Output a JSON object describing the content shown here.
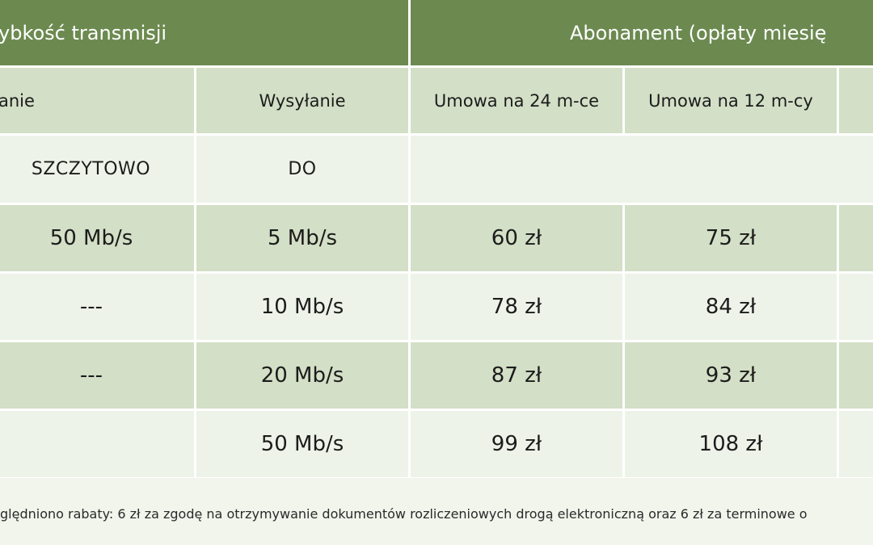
{
  "table": {
    "group_headers": {
      "speed": "ybkość transmisji",
      "subscription": "Abonament (opłaty miesię"
    },
    "sub_headers": {
      "download": "anie",
      "upload": "Wysyłanie",
      "contract_24": "Umowa na 24 m-ce",
      "contract_12": "Umowa na 12 m-cy",
      "extra": ""
    },
    "label_row": {
      "download": "SZCZYTOWO",
      "upload": "DO"
    },
    "rows": [
      {
        "download": "50 Mb/s",
        "upload": "5 Mb/s",
        "contract_24": "60 zł",
        "contract_12": "75 zł"
      },
      {
        "download": "---",
        "upload": "10 Mb/s",
        "contract_24": "78 zł",
        "contract_12": "84 zł"
      },
      {
        "download": "---",
        "upload": "20 Mb/s",
        "contract_24": "87 zł",
        "contract_12": "93 zł"
      },
      {
        "download": "",
        "upload": "50 Mb/s",
        "contract_24": "99 zł",
        "contract_12": "108 zł"
      }
    ]
  },
  "footnote": "ględniono rabaty: 6 zł za zgodę na otrzymywanie dokumentów rozliczeniowych drogą elektroniczną oraz 6 zł za terminowe o"
}
